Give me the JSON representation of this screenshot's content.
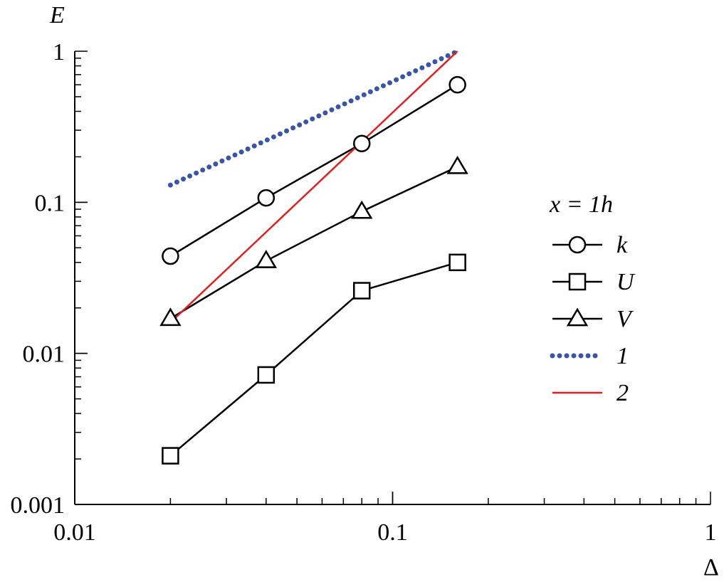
{
  "chart_data": {
    "type": "line",
    "xscale": "log",
    "yscale": "log",
    "xlim": [
      0.01,
      1
    ],
    "ylim": [
      0.001,
      1
    ],
    "xlabel": "Δ",
    "ylabel": "E",
    "x_ticks": [
      "0.01",
      "0.1",
      "1"
    ],
    "y_ticks": [
      "1",
      "0.1",
      "0.01",
      "0.001"
    ],
    "legend": {
      "title": "x = 1h",
      "placement": "right"
    },
    "series": [
      {
        "name": "k",
        "marker": "circle",
        "color": "#000000",
        "style": "solid",
        "x": [
          0.02,
          0.04,
          0.08,
          0.16
        ],
        "y": [
          0.044,
          0.107,
          0.245,
          0.6
        ]
      },
      {
        "name": "U",
        "marker": "square",
        "color": "#000000",
        "style": "solid",
        "x": [
          0.02,
          0.04,
          0.08,
          0.16
        ],
        "y": [
          0.0021,
          0.0072,
          0.026,
          0.04
        ]
      },
      {
        "name": "V",
        "marker": "triangle",
        "color": "#000000",
        "style": "solid",
        "x": [
          0.02,
          0.04,
          0.08,
          0.16
        ],
        "y": [
          0.017,
          0.041,
          0.087,
          0.172
        ]
      },
      {
        "name": "1",
        "marker": "none",
        "color": "#3a55a6",
        "style": "dotted",
        "x": [
          0.02,
          0.16
        ],
        "y": [
          0.13,
          1.0
        ]
      },
      {
        "name": "2",
        "marker": "none",
        "color": "#e02020",
        "style": "solid",
        "x": [
          0.02,
          0.16
        ],
        "y": [
          0.016,
          1.0
        ]
      }
    ]
  }
}
